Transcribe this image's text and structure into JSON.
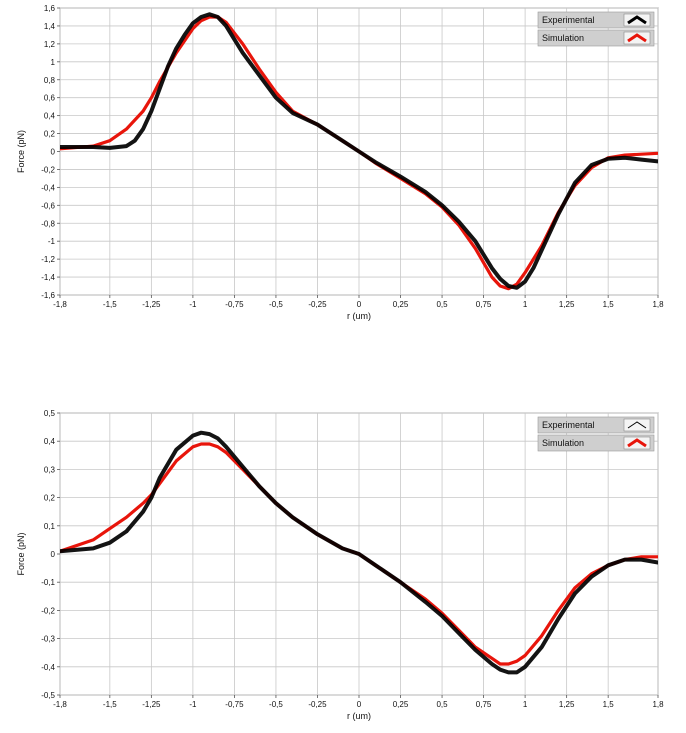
{
  "chart_data": [
    {
      "type": "line",
      "xlabel": "r (um)",
      "ylabel": "Force (pN)",
      "xlim": [
        -1.8,
        1.8
      ],
      "ylim": [
        -1.6,
        1.6
      ],
      "grid": true,
      "legend_position": "top-right",
      "x_ticks": [
        "-1,8",
        "-1,5",
        "-1,25",
        "-1",
        "-0,75",
        "-0,5",
        "-0,25",
        "0",
        "0,25",
        "0,5",
        "0,75",
        "1",
        "1,25",
        "1,5",
        "1,8"
      ],
      "x_tick_values": [
        -1.8,
        -1.5,
        -1.25,
        -1,
        -0.75,
        -0.5,
        -0.25,
        0,
        0.25,
        0.5,
        0.75,
        1,
        1.25,
        1.5,
        1.8
      ],
      "y_ticks": [
        "1,6",
        "1,4",
        "1,2",
        "1",
        "0,8",
        "0,6",
        "0,4",
        "0,2",
        "0",
        "-0,2",
        "-0,4",
        "-0,6",
        "-0,8",
        "-1",
        "-1,2",
        "-1,4",
        "-1,6"
      ],
      "y_tick_values": [
        1.6,
        1.4,
        1.2,
        1,
        0.8,
        0.6,
        0.4,
        0.2,
        0,
        -0.2,
        -0.4,
        -0.6,
        -0.8,
        -1,
        -1.2,
        -1.4,
        -1.6
      ],
      "series": [
        {
          "name": "Experimental",
          "color": "#000000",
          "x": [
            -1.8,
            -1.6,
            -1.5,
            -1.4,
            -1.35,
            -1.3,
            -1.25,
            -1.2,
            -1.15,
            -1.1,
            -1.05,
            -1.0,
            -0.95,
            -0.9,
            -0.85,
            -0.8,
            -0.75,
            -0.7,
            -0.6,
            -0.5,
            -0.4,
            -0.25,
            -0.1,
            0.0,
            0.1,
            0.25,
            0.4,
            0.5,
            0.6,
            0.7,
            0.8,
            0.85,
            0.9,
            0.95,
            1.0,
            1.05,
            1.1,
            1.2,
            1.3,
            1.4,
            1.5,
            1.6,
            1.7,
            1.8
          ],
          "y": [
            0.05,
            0.05,
            0.04,
            0.06,
            0.12,
            0.25,
            0.45,
            0.7,
            0.95,
            1.15,
            1.3,
            1.43,
            1.5,
            1.53,
            1.5,
            1.4,
            1.25,
            1.1,
            0.85,
            0.6,
            0.43,
            0.3,
            0.12,
            0.0,
            -0.12,
            -0.28,
            -0.45,
            -0.6,
            -0.78,
            -1.0,
            -1.3,
            -1.42,
            -1.5,
            -1.52,
            -1.45,
            -1.3,
            -1.1,
            -0.7,
            -0.35,
            -0.15,
            -0.08,
            -0.07,
            -0.09,
            -0.11
          ],
          "thick": true
        },
        {
          "name": "Simulation",
          "color": "#e8150b",
          "x": [
            -1.8,
            -1.6,
            -1.5,
            -1.4,
            -1.3,
            -1.25,
            -1.2,
            -1.1,
            -1.0,
            -0.95,
            -0.9,
            -0.85,
            -0.8,
            -0.7,
            -0.6,
            -0.5,
            -0.4,
            -0.25,
            -0.1,
            0.0,
            0.1,
            0.25,
            0.4,
            0.5,
            0.6,
            0.7,
            0.8,
            0.85,
            0.9,
            0.95,
            1.0,
            1.1,
            1.2,
            1.3,
            1.4,
            1.5,
            1.6,
            1.7,
            1.8
          ],
          "y": [
            0.03,
            0.06,
            0.12,
            0.25,
            0.45,
            0.6,
            0.78,
            1.1,
            1.37,
            1.46,
            1.5,
            1.5,
            1.44,
            1.2,
            0.92,
            0.66,
            0.45,
            0.3,
            0.12,
            0.0,
            -0.13,
            -0.3,
            -0.47,
            -0.62,
            -0.82,
            -1.08,
            -1.4,
            -1.5,
            -1.53,
            -1.48,
            -1.35,
            -1.05,
            -0.68,
            -0.38,
            -0.18,
            -0.07,
            -0.04,
            -0.03,
            -0.02
          ],
          "thick": false
        }
      ]
    },
    {
      "type": "line",
      "xlabel": "r (um)",
      "ylabel": "Force (pN)",
      "xlim": [
        -1.8,
        1.8
      ],
      "ylim": [
        -0.5,
        0.5
      ],
      "grid": true,
      "legend_position": "top-right",
      "x_ticks": [
        "-1,8",
        "-1,5",
        "-1,25",
        "-1",
        "-0,75",
        "-0,5",
        "-0,25",
        "0",
        "0,25",
        "0,5",
        "0,75",
        "1",
        "1,25",
        "1,5",
        "1,8"
      ],
      "x_tick_values": [
        -1.8,
        -1.5,
        -1.25,
        -1,
        -0.75,
        -0.5,
        -0.25,
        0,
        0.25,
        0.5,
        0.75,
        1,
        1.25,
        1.5,
        1.8
      ],
      "y_ticks": [
        "0,5",
        "0,4",
        "0,3",
        "0,2",
        "0,1",
        "0",
        "-0,1",
        "-0,2",
        "-0,3",
        "-0,4",
        "-0,5"
      ],
      "y_tick_values": [
        0.5,
        0.4,
        0.3,
        0.2,
        0.1,
        0,
        -0.1,
        -0.2,
        -0.3,
        -0.4,
        -0.5
      ],
      "series": [
        {
          "name": "Experimental",
          "color": "#000000",
          "x": [
            -1.8,
            -1.6,
            -1.5,
            -1.4,
            -1.3,
            -1.25,
            -1.2,
            -1.1,
            -1.0,
            -0.95,
            -0.9,
            -0.85,
            -0.8,
            -0.7,
            -0.6,
            -0.5,
            -0.4,
            -0.25,
            -0.1,
            0.0,
            0.1,
            0.25,
            0.4,
            0.5,
            0.6,
            0.7,
            0.8,
            0.85,
            0.9,
            0.95,
            1.0,
            1.1,
            1.2,
            1.3,
            1.4,
            1.5,
            1.6,
            1.7,
            1.8
          ],
          "y": [
            0.01,
            0.02,
            0.04,
            0.08,
            0.15,
            0.2,
            0.27,
            0.37,
            0.42,
            0.43,
            0.425,
            0.41,
            0.38,
            0.31,
            0.24,
            0.18,
            0.13,
            0.07,
            0.02,
            0.0,
            -0.04,
            -0.1,
            -0.17,
            -0.22,
            -0.28,
            -0.34,
            -0.39,
            -0.41,
            -0.42,
            -0.42,
            -0.4,
            -0.33,
            -0.23,
            -0.14,
            -0.08,
            -0.04,
            -0.02,
            -0.02,
            -0.03
          ],
          "thick": true
        },
        {
          "name": "Simulation",
          "color": "#e8150b",
          "x": [
            -1.8,
            -1.6,
            -1.5,
            -1.4,
            -1.3,
            -1.25,
            -1.2,
            -1.1,
            -1.0,
            -0.95,
            -0.9,
            -0.85,
            -0.8,
            -0.7,
            -0.6,
            -0.5,
            -0.4,
            -0.25,
            -0.1,
            0.0,
            0.1,
            0.25,
            0.4,
            0.5,
            0.6,
            0.7,
            0.8,
            0.85,
            0.9,
            0.95,
            1.0,
            1.1,
            1.2,
            1.3,
            1.4,
            1.5,
            1.6,
            1.7,
            1.8
          ],
          "y": [
            0.01,
            0.05,
            0.09,
            0.13,
            0.18,
            0.21,
            0.25,
            0.33,
            0.38,
            0.39,
            0.39,
            0.38,
            0.36,
            0.3,
            0.24,
            0.18,
            0.13,
            0.07,
            0.02,
            0.0,
            -0.04,
            -0.1,
            -0.16,
            -0.21,
            -0.27,
            -0.33,
            -0.37,
            -0.39,
            -0.39,
            -0.38,
            -0.36,
            -0.29,
            -0.2,
            -0.12,
            -0.07,
            -0.04,
            -0.02,
            -0.01,
            -0.01
          ],
          "thick": false
        }
      ]
    }
  ]
}
